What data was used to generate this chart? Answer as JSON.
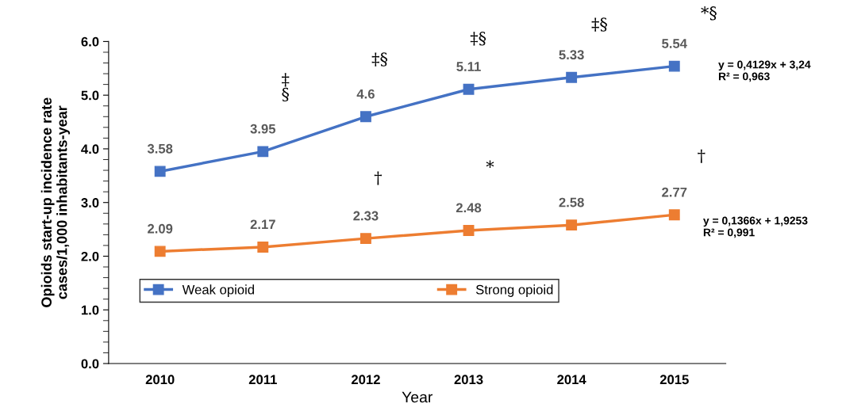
{
  "chart_data": {
    "type": "line",
    "xlabel": "Year",
    "ylabel": "Opioids start-up incidence rate\ncases/1,000 inhabitants-year",
    "categories": [
      "2010",
      "2011",
      "2012",
      "2013",
      "2014",
      "2015"
    ],
    "series": [
      {
        "name": "Weak opioid",
        "color": "#4472c4",
        "values": [
          3.58,
          3.95,
          4.6,
          5.11,
          5.33,
          5.54
        ]
      },
      {
        "name": "Strong opioid",
        "color": "#ed7d31",
        "values": [
          2.09,
          2.17,
          2.33,
          2.48,
          2.58,
          2.77
        ]
      }
    ],
    "ylim": [
      0,
      6
    ],
    "yticks": [
      {
        "value": 0,
        "label": "0.0"
      },
      {
        "value": 1,
        "label": "1.0"
      },
      {
        "value": 2,
        "label": "2.0"
      },
      {
        "value": 3,
        "label": "3.0"
      },
      {
        "value": 4,
        "label": "4.0"
      },
      {
        "value": 5,
        "label": "5.0"
      },
      {
        "value": 6,
        "label": "6.0"
      }
    ],
    "data_labels": true,
    "marker": "square",
    "line_style": "solid",
    "legend": "bottom left",
    "grid": false,
    "annotations": [
      "‡\n§",
      "‡§",
      "‡§",
      "‡§",
      "*§",
      "†",
      "*",
      "†",
      "y = 0,4129x + 3,24\nR² = 0,963",
      "y = 0,1366x + 1,9253\nR² = 0,991"
    ]
  }
}
